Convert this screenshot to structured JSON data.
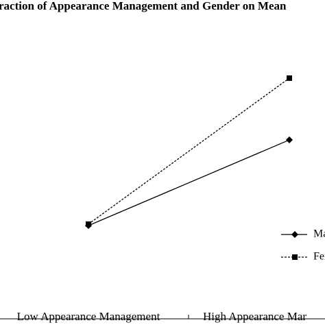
{
  "chart_data": {
    "type": "line",
    "title": "raction of Appearance Management and Gender on Mean",
    "categories": [
      "Low Appearance Management",
      "High Appearance Mar"
    ],
    "series": [
      {
        "name": "Ma",
        "color": "#000000",
        "dash": "solid",
        "marker": "diamond",
        "values": [
          32,
          61.4
        ]
      },
      {
        "name": "Fer",
        "color": "#000000",
        "dash": "dashed",
        "marker": "square",
        "values": [
          32.5,
          82.6
        ]
      }
    ],
    "ylim": [
      0,
      100
    ],
    "grid": false
  }
}
